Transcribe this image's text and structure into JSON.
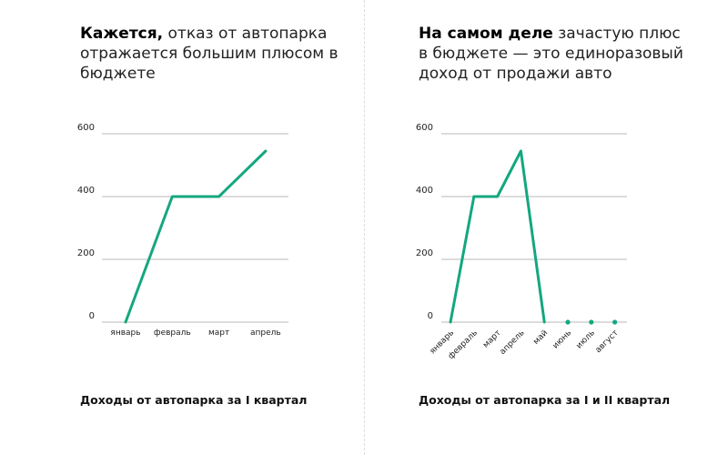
{
  "panels": [
    {
      "heading_bold": "Кажется,",
      "heading_rest": " отказ от автопарка отражается большим плюсом в бюджете",
      "caption": "Доходы от автопарка за I квартал"
    },
    {
      "heading_bold": "На самом деле",
      "heading_rest": " зачастую плюс в бюджете — это единоразовый доход от продажи авто",
      "caption": "Доходы от автопарка за I и II квартал"
    }
  ],
  "colors": {
    "line": "#14a77f",
    "grid": "#b9b9b9",
    "text": "#222222"
  },
  "chart_data": [
    {
      "type": "line",
      "categories": [
        "январь",
        "февраль",
        "март",
        "апрель"
      ],
      "series": [
        {
          "values": [
            0,
            400,
            400,
            545
          ]
        }
      ],
      "ylim": [
        0,
        600
      ],
      "yticks": [
        0,
        200,
        400,
        600
      ],
      "grid": true,
      "xlabel_rotation": 0
    },
    {
      "type": "line",
      "categories": [
        "январь",
        "февраль",
        "март",
        "апрель",
        "май",
        "июнь",
        "июль",
        "август"
      ],
      "series": [
        {
          "values": [
            0,
            400,
            400,
            545,
            0,
            0,
            0,
            0
          ],
          "line_until_index": 4
        }
      ],
      "ylim": [
        0,
        600
      ],
      "yticks": [
        0,
        200,
        400,
        600
      ],
      "grid": true,
      "xlabel_rotation": -45
    }
  ]
}
